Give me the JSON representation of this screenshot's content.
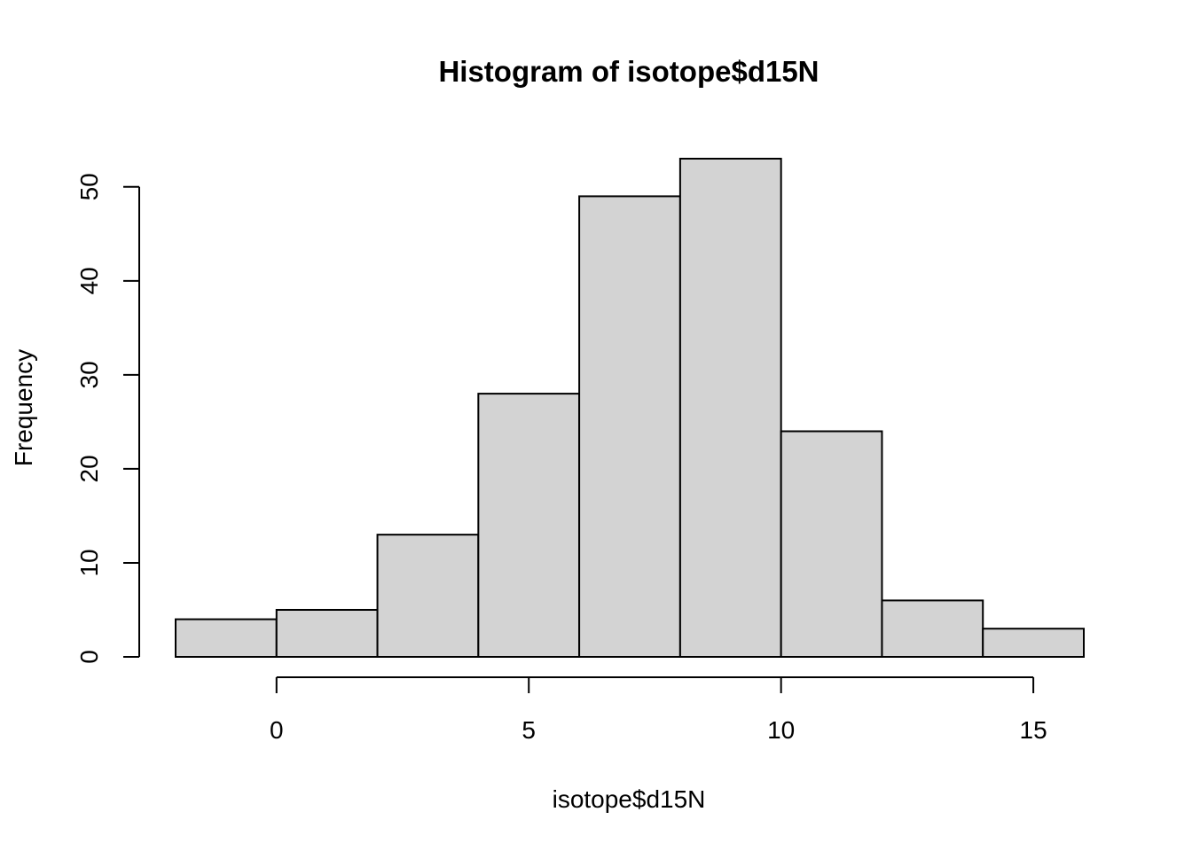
{
  "chart_data": {
    "type": "bar",
    "title": "Histogram of isotope$d15N",
    "xlabel": "isotope$d15N",
    "ylabel": "Frequency",
    "bins": [
      {
        "start": -2,
        "end": 0,
        "count": 4
      },
      {
        "start": 0,
        "end": 2,
        "count": 5
      },
      {
        "start": 2,
        "end": 4,
        "count": 13
      },
      {
        "start": 4,
        "end": 6,
        "count": 28
      },
      {
        "start": 6,
        "end": 8,
        "count": 49
      },
      {
        "start": 8,
        "end": 10,
        "count": 53
      },
      {
        "start": 10,
        "end": 12,
        "count": 24
      },
      {
        "start": 12,
        "end": 14,
        "count": 6
      },
      {
        "start": 14,
        "end": 16,
        "count": 3
      }
    ],
    "xlim": [
      -2,
      16
    ],
    "ylim": [
      0,
      53
    ],
    "x_ticks": [
      0,
      5,
      10,
      15
    ],
    "y_ticks": [
      0,
      10,
      20,
      30,
      40,
      50
    ],
    "bar_color": "#d3d3d3",
    "edge_color": "#000000",
    "grid": false,
    "legend": "none"
  }
}
